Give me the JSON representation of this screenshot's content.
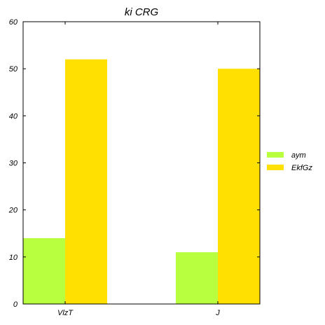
{
  "chart_data": {
    "type": "bar",
    "title": "ki  CRG",
    "categories": [
      "VlzT",
      "J"
    ],
    "series": [
      {
        "name": "aym",
        "values": [
          14,
          11
        ],
        "color": "#b8ff40"
      },
      {
        "name": "EkfGz",
        "values": [
          52,
          50
        ],
        "color": "#ffe000"
      }
    ],
    "ylim": [
      0,
      60
    ],
    "yticks": [
      0,
      10,
      20,
      30,
      40,
      50,
      60
    ],
    "xlabel": "",
    "ylabel": "",
    "grid": false,
    "legend_position": "right"
  }
}
